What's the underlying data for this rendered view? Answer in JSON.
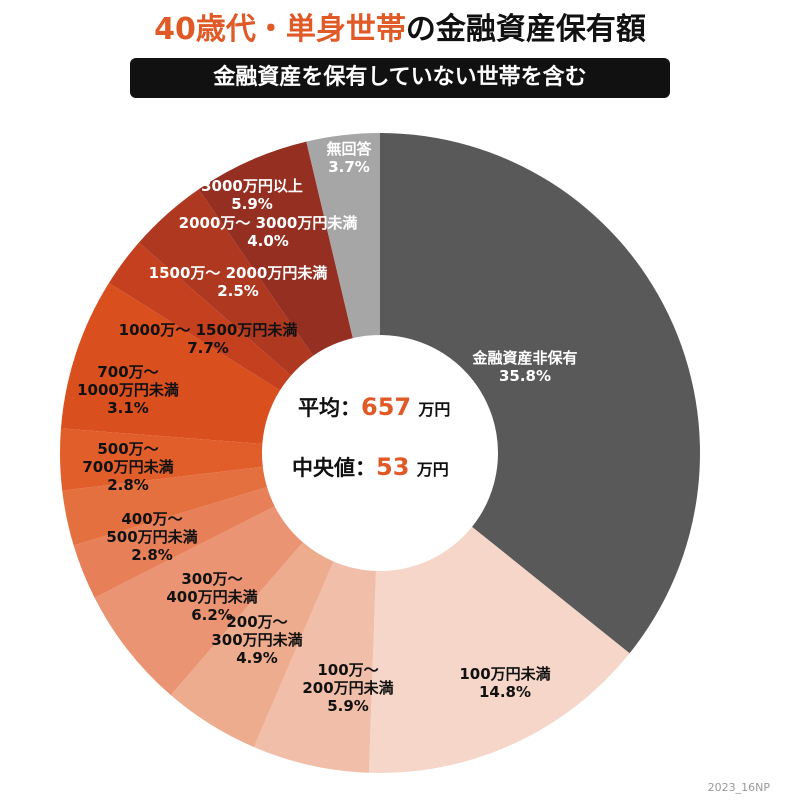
{
  "title": {
    "accent": "40歳代・単身世帯",
    "rest": "の金融資産保有額"
  },
  "subtitle": "金融資産を保有していない世帯を含む",
  "center": {
    "mean_label": "平均：",
    "mean_value": "657",
    "median_label": "中央値：",
    "median_value": "53",
    "unit": "万円"
  },
  "footer": "2023_16NP",
  "chart_data": {
    "type": "pie",
    "donut": true,
    "title": "40歳代・単身世帯の金融資産保有額",
    "categories": [
      "金融資産非保有",
      "100万円未満",
      "100万～200万円未満",
      "200万～300万円未満",
      "300万～400万円未満",
      "400万～500万円未満",
      "500万～700万円未満",
      "700万～1000万円未満",
      "1000万～1500万円未満",
      "1500万～2000万円未満",
      "2000万～3000万円未満",
      "3000万円以上",
      "無回答"
    ],
    "values": [
      35.8,
      14.8,
      5.9,
      4.9,
      6.2,
      2.8,
      2.8,
      3.1,
      7.7,
      2.5,
      4.0,
      5.9,
      3.7
    ],
    "colors": [
      "#595959",
      "#f6d6c8",
      "#f1bfa9",
      "#eeac8f",
      "#ea9473",
      "#e77f59",
      "#e5703f",
      "#e15e2b",
      "#da4f1e",
      "#c5401f",
      "#ae3820",
      "#952f22",
      "#a6a6a6"
    ],
    "labels": [
      {
        "lines": [
          "金融資産非保有",
          "35.8%"
        ],
        "color": "w"
      },
      {
        "lines": [
          "100万円未満",
          "14.8%"
        ],
        "color": "b"
      },
      {
        "lines": [
          "100万～",
          "200万円未満",
          "5.9%"
        ],
        "color": "b"
      },
      {
        "lines": [
          "200万～",
          "300万円未満",
          "4.9%"
        ],
        "color": "b"
      },
      {
        "lines": [
          "300万～",
          "400万円未満",
          "6.2%"
        ],
        "color": "b"
      },
      {
        "lines": [
          "400万～",
          "500万円未満",
          "2.8%"
        ],
        "color": "b"
      },
      {
        "lines": [
          "500万～",
          "700万円未満",
          "2.8%"
        ],
        "color": "b"
      },
      {
        "lines": [
          "700万～",
          "1000万円未満",
          "3.1%"
        ],
        "color": "b"
      },
      {
        "lines": [
          "1000万～ 1500万円未満",
          "7.7%"
        ],
        "color": "b"
      },
      {
        "lines": [
          "1500万～ 2000万円未満",
          "2.5%"
        ],
        "color": "w"
      },
      {
        "lines": [
          "2000万～ 3000万円未満",
          "4.0%"
        ],
        "color": "w"
      },
      {
        "lines": [
          "3000万円以上",
          "5.9%"
        ],
        "color": "w"
      },
      {
        "lines": [
          "無回答",
          "3.7%"
        ],
        "color": "w"
      }
    ],
    "legend": "none"
  }
}
